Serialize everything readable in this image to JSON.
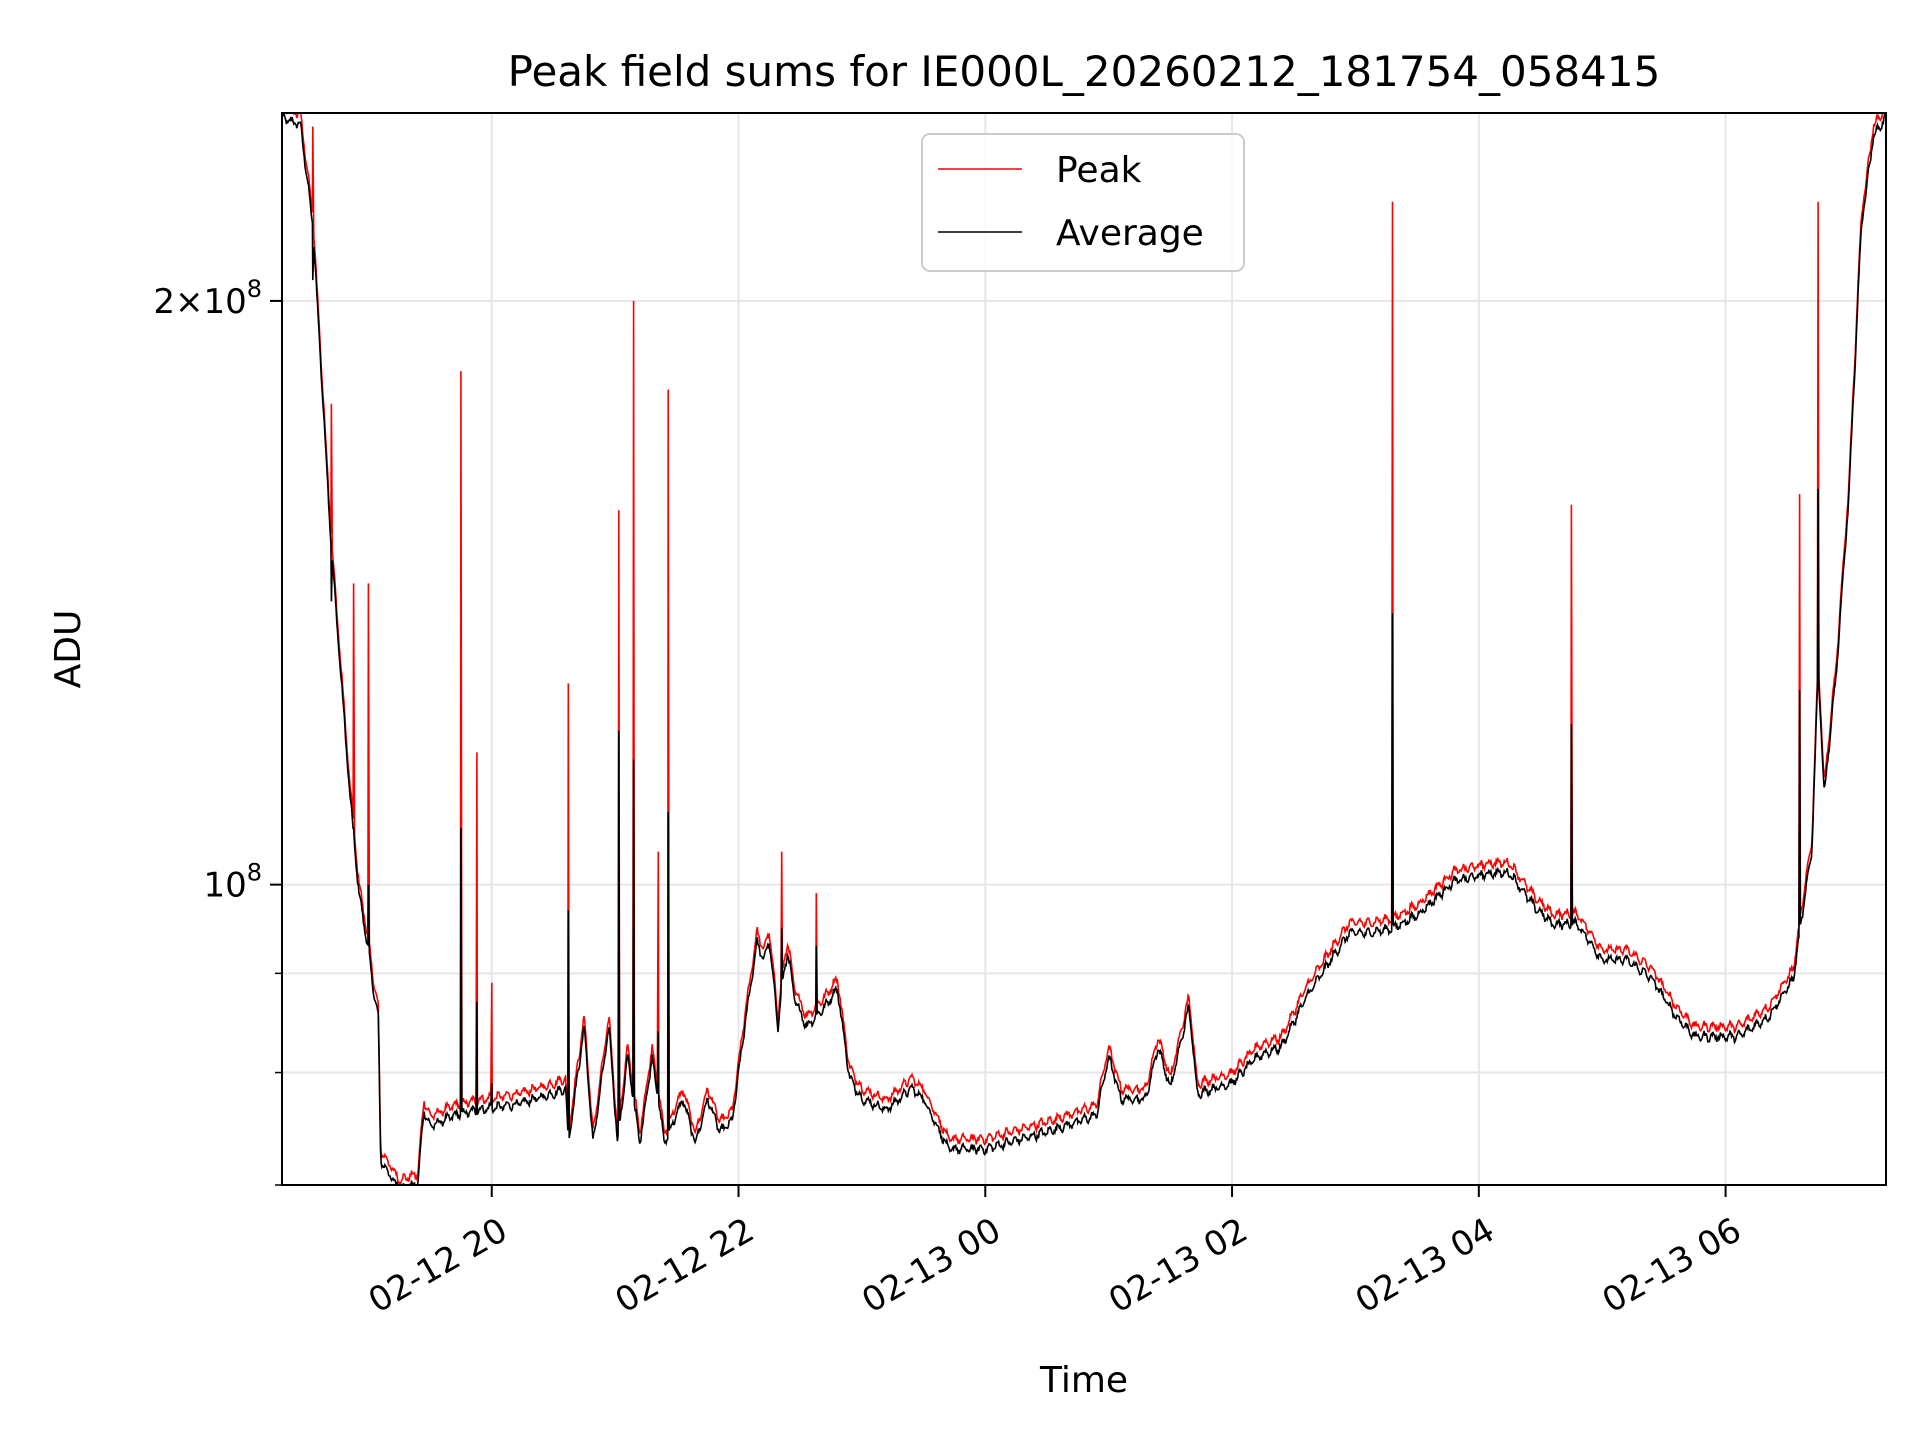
{
  "chart_data": {
    "type": "line",
    "title": "Peak field sums for IE000L_20260212_181754_058415",
    "xlabel": "Time",
    "ylabel": "ADU",
    "x_unit": "hours since 2026-02-12 00:00",
    "xlim": [
      18.3,
      31.3
    ],
    "ylim": [
      70000000.0,
      250000000.0
    ],
    "y_scale": "log",
    "grid": true,
    "legend_position": "upper center",
    "x_ticks": [
      {
        "value": 20,
        "label": "02-12 20"
      },
      {
        "value": 22,
        "label": "02-12 22"
      },
      {
        "value": 24,
        "label": "02-13 00"
      },
      {
        "value": 26,
        "label": "02-13 02"
      },
      {
        "value": 28,
        "label": "02-13 04"
      },
      {
        "value": 30,
        "label": "02-13 06"
      }
    ],
    "y_ticks_major": [
      {
        "value": 100000000,
        "label": "10",
        "exp": "8"
      },
      {
        "value": 200000000,
        "label": "2×10",
        "exp": "8"
      }
    ],
    "y_ticks_minor": [
      70000000,
      80000000,
      90000000
    ],
    "base": [
      [
        18.3,
        250000000.0
      ],
      [
        18.45,
        248000000.0
      ],
      [
        18.55,
        220000000.0
      ],
      [
        18.7,
        150000000.0
      ],
      [
        18.85,
        112000000.0
      ],
      [
        18.92,
        100000000.0
      ],
      [
        19.0,
        93000000.0
      ],
      [
        19.05,
        88000000.0
      ],
      [
        19.08,
        86000000.0
      ],
      [
        19.1,
        72500000.0
      ],
      [
        19.25,
        70000000.0
      ],
      [
        19.4,
        70500000.0
      ],
      [
        19.45,
        77000000.0
      ],
      [
        19.5,
        75500000.0
      ],
      [
        19.7,
        76500000.0
      ],
      [
        19.9,
        77000000.0
      ],
      [
        20.2,
        77500000.0
      ],
      [
        20.5,
        78500000.0
      ],
      [
        20.6,
        79000000.0
      ],
      [
        20.62,
        74000000.0
      ],
      [
        20.75,
        85000000.0
      ],
      [
        20.82,
        74000000.0
      ],
      [
        20.95,
        85000000.0
      ],
      [
        21.02,
        74000000.0
      ],
      [
        21.1,
        82000000.0
      ],
      [
        21.2,
        74000000.0
      ],
      [
        21.3,
        82000000.0
      ],
      [
        21.4,
        74000000.0
      ],
      [
        21.55,
        78000000.0
      ],
      [
        21.65,
        74000000.0
      ],
      [
        21.75,
        78000000.0
      ],
      [
        21.85,
        75000000.0
      ],
      [
        21.95,
        76000000.0
      ],
      [
        22.05,
        85000000.0
      ],
      [
        22.15,
        94000000.0
      ],
      [
        22.2,
        92000000.0
      ],
      [
        22.25,
        94000000.0
      ],
      [
        22.32,
        85000000.0
      ],
      [
        22.35,
        89000000.0
      ],
      [
        22.4,
        93000000.0
      ],
      [
        22.45,
        88000000.0
      ],
      [
        22.55,
        85000000.0
      ],
      [
        22.7,
        87000000.0
      ],
      [
        22.8,
        89000000.0
      ],
      [
        22.9,
        80000000.0
      ],
      [
        23.0,
        78000000.0
      ],
      [
        23.2,
        77000000.0
      ],
      [
        23.4,
        79000000.0
      ],
      [
        23.5,
        78000000.0
      ],
      [
        23.7,
        73500000.0
      ],
      [
        24.0,
        73500000.0
      ],
      [
        24.5,
        75000000.0
      ],
      [
        24.9,
        76500000.0
      ],
      [
        25.0,
        82000000.0
      ],
      [
        25.1,
        78000000.0
      ],
      [
        25.3,
        78000000.0
      ],
      [
        25.4,
        83000000.0
      ],
      [
        25.5,
        79000000.0
      ],
      [
        25.65,
        87000000.0
      ],
      [
        25.72,
        78500000.0
      ],
      [
        26.0,
        79500000.0
      ],
      [
        26.2,
        82000000.0
      ],
      [
        26.4,
        83000000.0
      ],
      [
        26.6,
        88000000.0
      ],
      [
        26.8,
        92000000.0
      ],
      [
        26.95,
        95000000.0
      ],
      [
        27.1,
        95000000.0
      ],
      [
        27.3,
        95500000.0
      ],
      [
        27.5,
        97000000.0
      ],
      [
        27.8,
        101000000.0
      ],
      [
        28.1,
        102000000.0
      ],
      [
        28.25,
        102000000.0
      ],
      [
        28.45,
        98000000.0
      ],
      [
        28.6,
        96000000.0
      ],
      [
        28.8,
        96000000.0
      ],
      [
        29.0,
        92000000.0
      ],
      [
        29.2,
        92000000.0
      ],
      [
        29.4,
        90000000.0
      ],
      [
        29.6,
        86000000.0
      ],
      [
        29.75,
        84000000.0
      ],
      [
        30.1,
        84000000.0
      ],
      [
        30.35,
        86000000.0
      ],
      [
        30.55,
        90000000.0
      ],
      [
        30.6,
        95000000.0
      ],
      [
        30.7,
        105000000.0
      ],
      [
        30.75,
        130000000.0
      ],
      [
        30.8,
        112000000.0
      ],
      [
        30.9,
        130000000.0
      ],
      [
        31.0,
        160000000.0
      ],
      [
        31.1,
        220000000.0
      ],
      [
        31.2,
        245000000.0
      ],
      [
        31.3,
        250000000.0
      ]
    ],
    "series": [
      {
        "name": "Peak",
        "color": "#ff0000",
        "spikes": [
          [
            18.55,
            246000000.0
          ],
          [
            18.7,
            177000000.0
          ],
          [
            18.88,
            143000000.0
          ],
          [
            19.0,
            143000000.0
          ],
          [
            19.75,
            184000000.0
          ],
          [
            19.88,
            117000000.0
          ],
          [
            20.0,
            89000000.0
          ],
          [
            20.62,
            127000000.0
          ],
          [
            21.03,
            156000000.0
          ],
          [
            21.15,
            200000000.0
          ],
          [
            21.35,
            104000000.0
          ],
          [
            21.43,
            180000000.0
          ],
          [
            22.35,
            104000000.0
          ],
          [
            22.63,
            99000000.0
          ],
          [
            27.3,
            225000000.0
          ],
          [
            28.75,
            157000000.0
          ],
          [
            30.6,
            159000000.0
          ],
          [
            30.75,
            225000000.0
          ]
        ]
      },
      {
        "name": "Average",
        "color": "#000000",
        "spikes": [
          [
            18.55,
            205000000.0
          ],
          [
            18.7,
            140000000.0
          ],
          [
            18.88,
            107000000.0
          ],
          [
            19.0,
            100000000.0
          ],
          [
            19.75,
            107000000.0
          ],
          [
            19.88,
            87000000.0
          ],
          [
            20.0,
            79000000.0
          ],
          [
            20.62,
            97000000.0
          ],
          [
            21.03,
            120000000.0
          ],
          [
            21.15,
            116000000.0
          ],
          [
            21.35,
            84000000.0
          ],
          [
            21.43,
            109000000.0
          ],
          [
            22.35,
            95000000.0
          ],
          [
            22.63,
            93000000.0
          ],
          [
            27.3,
            138000000.0
          ],
          [
            28.75,
            121000000.0
          ],
          [
            30.6,
            126000000.0
          ],
          [
            30.75,
            160000000.0
          ]
        ]
      }
    ]
  }
}
